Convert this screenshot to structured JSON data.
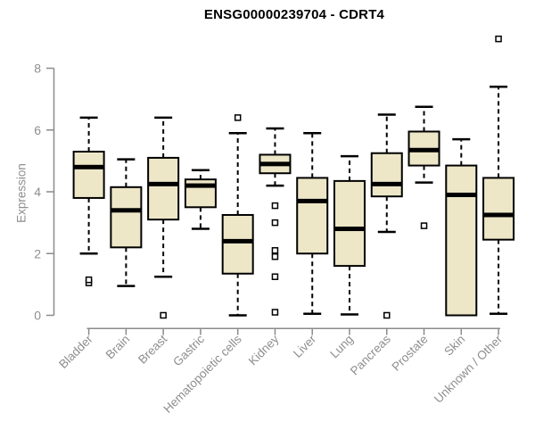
{
  "chart_data": {
    "type": "boxplot",
    "title": "ENSG00000239704 - CDRT4",
    "ylabel": "Expression",
    "xlabel": "",
    "ylim": [
      0,
      9
    ],
    "yticks": [
      0,
      2,
      4,
      6,
      8
    ],
    "grid": false,
    "legend": "none",
    "categories": [
      "Bladder",
      "Brain",
      "Breast",
      "Gastric",
      "Hematopoietic cells",
      "Kidney",
      "Liver",
      "Lung",
      "Pancreas",
      "Prostate",
      "Skin",
      "Unknown / Other"
    ],
    "boxes": [
      {
        "label": "Bladder",
        "whisker_low": 2.0,
        "q1": 3.8,
        "median": 4.8,
        "q3": 5.3,
        "whisker_high": 6.4,
        "outliers": [
          1.05,
          1.15
        ]
      },
      {
        "label": "Brain",
        "whisker_low": 0.95,
        "q1": 2.2,
        "median": 3.4,
        "q3": 4.15,
        "whisker_high": 5.05,
        "outliers": []
      },
      {
        "label": "Breast",
        "whisker_low": 1.25,
        "q1": 3.1,
        "median": 4.25,
        "q3": 5.1,
        "whisker_high": 6.4,
        "outliers": [
          0.0
        ]
      },
      {
        "label": "Gastric",
        "whisker_low": 2.8,
        "q1": 3.5,
        "median": 4.2,
        "q3": 4.4,
        "whisker_high": 4.7,
        "outliers": []
      },
      {
        "label": "Hematopoietic cells",
        "whisker_low": 0.0,
        "q1": 1.35,
        "median": 2.4,
        "q3": 3.25,
        "whisker_high": 5.9,
        "outliers": [
          6.4
        ]
      },
      {
        "label": "Kidney",
        "whisker_low": 4.2,
        "q1": 4.6,
        "median": 4.9,
        "q3": 5.2,
        "whisker_high": 6.05,
        "outliers": [
          3.55,
          3.0,
          2.1,
          1.9,
          1.25,
          0.1
        ]
      },
      {
        "label": "Liver",
        "whisker_low": 0.05,
        "q1": 2.0,
        "median": 3.7,
        "q3": 4.45,
        "whisker_high": 5.9,
        "outliers": []
      },
      {
        "label": "Lung",
        "whisker_low": 0.03,
        "q1": 1.6,
        "median": 2.8,
        "q3": 4.35,
        "whisker_high": 5.15,
        "outliers": []
      },
      {
        "label": "Pancreas",
        "whisker_low": 2.7,
        "q1": 3.85,
        "median": 4.25,
        "q3": 5.25,
        "whisker_high": 6.5,
        "outliers": [
          0.0
        ]
      },
      {
        "label": "Prostate",
        "whisker_low": 4.3,
        "q1": 4.85,
        "median": 5.35,
        "q3": 5.95,
        "whisker_high": 6.75,
        "outliers": [
          2.9
        ]
      },
      {
        "label": "Skin",
        "whisker_low": 0.0,
        "q1": 0.0,
        "median": 3.9,
        "q3": 4.85,
        "whisker_high": 5.7,
        "outliers": []
      },
      {
        "label": "Unknown / Other",
        "whisker_low": 0.05,
        "q1": 2.45,
        "median": 3.25,
        "q3": 4.45,
        "whisker_high": 7.4,
        "outliers": [
          8.95
        ]
      }
    ],
    "colors": {
      "box_fill": "#EDE7C8",
      "box_border": "#000000",
      "median": "#000000",
      "whisker": "#000000",
      "axis": "#8B8B8B",
      "tick_label": "#8E8E8E",
      "title": "#000000",
      "background": "#FFFFFF"
    }
  }
}
